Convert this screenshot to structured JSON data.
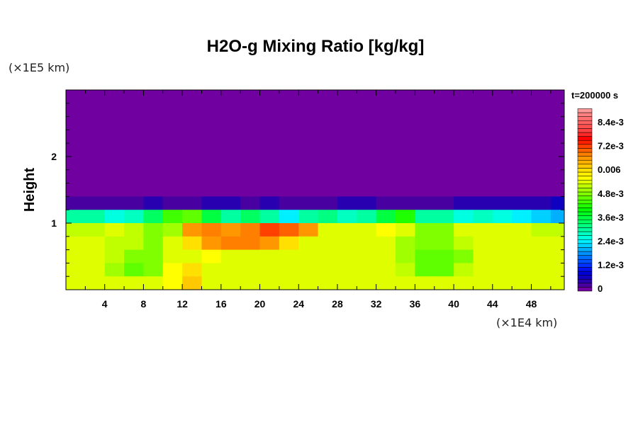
{
  "chart_data": {
    "type": "heatmap",
    "title": "H2O-g Mixing Ratio [kg/kg]",
    "ylabel": "Height",
    "y_unit": "(×1E5 km)",
    "x_unit": "(×1E4 km)",
    "time_label": "t=200000 s",
    "xlim": [
      0,
      51.4
    ],
    "ylim": [
      0,
      3.0
    ],
    "x_ticks": [
      "4",
      "8",
      "12",
      "16",
      "20",
      "24",
      "28",
      "32",
      "36",
      "40",
      "44",
      "48"
    ],
    "x_tick_values": [
      4,
      8,
      12,
      16,
      20,
      24,
      28,
      32,
      36,
      40,
      44,
      48
    ],
    "y_ticks": [
      "1",
      "2"
    ],
    "y_tick_values": [
      1,
      2
    ],
    "colorbar": {
      "labels": [
        "0",
        "1.2e-3",
        "2.4e-3",
        "3.6e-3",
        "4.8e-3",
        "0.006",
        "7.2e-3",
        "8.4e-3"
      ],
      "label_values": [
        0,
        1.2,
        2.4,
        3.6,
        4.8,
        6.0,
        7.2,
        8.4
      ],
      "level_step": 0.2,
      "value_scale": "1e-3 kg/kg",
      "colors": [
        "#7000a0",
        "#4800a0",
        "#2800b0",
        "#1000c0",
        "#0000d8",
        "#0010f0",
        "#0030ff",
        "#0050ff",
        "#0070ff",
        "#0090ff",
        "#00b0ff",
        "#00d0ff",
        "#00f0ff",
        "#00ffe0",
        "#00ffc0",
        "#00ffa0",
        "#00ff80",
        "#00ff60",
        "#00ff40",
        "#00ff20",
        "#00ff00",
        "#20ff00",
        "#40ff00",
        "#60ff00",
        "#80ff00",
        "#a0ff00",
        "#c0ff00",
        "#dfff00",
        "#ffff00",
        "#fff000",
        "#ffe000",
        "#ffc800",
        "#ffb000",
        "#ff9800",
        "#ff8000",
        "#ff6000",
        "#ff4000",
        "#ff2000",
        "#ff0000",
        "#ff2828",
        "#ff4040",
        "#ff5050",
        "#ff6060",
        "#ff7070",
        "#ff8080",
        "#ff9898"
      ]
    },
    "grid": {
      "x_step": 2,
      "y_step": 0.2,
      "value_scale": "1e-3 kg/kg",
      "rows_top_to_bottom": [
        [
          0,
          0,
          0,
          0,
          0,
          0,
          0,
          0,
          0,
          0,
          0,
          0,
          0,
          0,
          0,
          0,
          0,
          0,
          0,
          0,
          0,
          0,
          0,
          0,
          0,
          0
        ],
        [
          0,
          0,
          0,
          0,
          0,
          0,
          0,
          0,
          0,
          0,
          0,
          0,
          0,
          0,
          0,
          0,
          0,
          0,
          0,
          0,
          0,
          0,
          0,
          0,
          0,
          0
        ],
        [
          0,
          0,
          0,
          0,
          0,
          0,
          0,
          0,
          0,
          0,
          0,
          0,
          0,
          0,
          0,
          0,
          0,
          0,
          0,
          0,
          0,
          0,
          0,
          0,
          0,
          0
        ],
        [
          0,
          0,
          0,
          0,
          0,
          0,
          0,
          0,
          0,
          0,
          0,
          0,
          0,
          0,
          0,
          0,
          0,
          0,
          0,
          0,
          0,
          0,
          0,
          0,
          0,
          0
        ],
        [
          0,
          0,
          0,
          0,
          0,
          0,
          0,
          0,
          0,
          0,
          0,
          0,
          0,
          0,
          0,
          0,
          0,
          0,
          0,
          0,
          0,
          0,
          0,
          0,
          0,
          0
        ],
        [
          0,
          0,
          0,
          0,
          0,
          0,
          0,
          0,
          0,
          0,
          0,
          0,
          0,
          0,
          0,
          0,
          0,
          0,
          0,
          0,
          0,
          0,
          0,
          0,
          0,
          0
        ],
        [
          0,
          0,
          0,
          0,
          0,
          0,
          0,
          0,
          0,
          0,
          0,
          0,
          0,
          0,
          0,
          0,
          0,
          0,
          0,
          0,
          0,
          0,
          0,
          0,
          0,
          0
        ],
        [
          0,
          0,
          0,
          0,
          0,
          0,
          0,
          0,
          0,
          0,
          0,
          0,
          0,
          0,
          0,
          0,
          0,
          0,
          0,
          0,
          0,
          0,
          0,
          0,
          0,
          0
        ],
        [
          0.2,
          0.2,
          0.2,
          0.2,
          0.4,
          0.2,
          0.2,
          0.4,
          0.4,
          0.2,
          0.4,
          0.2,
          0.2,
          0.2,
          0.4,
          0.4,
          0.2,
          0.2,
          0.2,
          0.2,
          0.4,
          0.4,
          0.4,
          0.4,
          0.4,
          0.6
        ],
        [
          3.0,
          3.0,
          2.6,
          2.8,
          3.4,
          4.4,
          4.6,
          3.6,
          3.0,
          3.4,
          3.0,
          2.4,
          3.0,
          3.2,
          2.8,
          3.0,
          3.6,
          4.2,
          3.0,
          3.0,
          2.6,
          2.8,
          2.6,
          2.4,
          2.2,
          2.0
        ],
        [
          5.3,
          5.3,
          5.5,
          5.3,
          4.8,
          5.0,
          6.7,
          6.9,
          6.7,
          6.9,
          7.2,
          7.0,
          6.6,
          5.5,
          5.5,
          5.5,
          5.6,
          5.5,
          4.9,
          4.8,
          5.5,
          5.5,
          5.5,
          5.5,
          5.3,
          5.3
        ],
        [
          5.5,
          5.5,
          5.3,
          5.3,
          4.8,
          5.5,
          6.0,
          6.7,
          6.8,
          6.9,
          6.7,
          6.0,
          5.5,
          5.5,
          5.5,
          5.5,
          5.5,
          5.0,
          4.8,
          4.9,
          5.3,
          5.5,
          5.5,
          5.5,
          5.5,
          5.5
        ],
        [
          5.5,
          5.5,
          5.3,
          4.8,
          4.9,
          5.4,
          5.5,
          5.6,
          5.5,
          5.5,
          5.5,
          5.5,
          5.5,
          5.5,
          5.5,
          5.5,
          5.5,
          5.0,
          4.6,
          4.6,
          4.9,
          5.5,
          5.5,
          5.5,
          5.5,
          5.5
        ],
        [
          5.5,
          5.5,
          5.0,
          4.7,
          4.8,
          5.6,
          6.0,
          5.5,
          5.5,
          5.5,
          5.5,
          5.5,
          5.5,
          5.5,
          5.5,
          5.5,
          5.5,
          5.2,
          4.6,
          4.7,
          5.2,
          5.5,
          5.5,
          5.5,
          5.5,
          5.5
        ],
        [
          5.5,
          5.5,
          5.5,
          5.5,
          5.5,
          5.6,
          6.3,
          5.5,
          5.5,
          5.5,
          5.5,
          5.5,
          5.5,
          5.5,
          5.5,
          5.5,
          5.5,
          5.5,
          5.4,
          5.5,
          5.5,
          5.5,
          5.5,
          5.5,
          5.5,
          5.5
        ]
      ]
    }
  }
}
